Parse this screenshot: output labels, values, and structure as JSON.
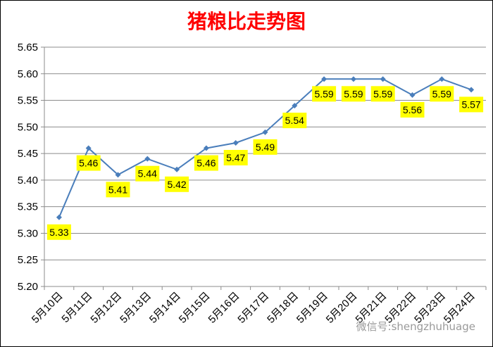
{
  "chart_data": {
    "type": "line",
    "title": "猪粮比走势图",
    "categories": [
      "5月10日",
      "5月11日",
      "5月12日",
      "5月13日",
      "5月14日",
      "5月15日",
      "5月16日",
      "5月17日",
      "5月18日",
      "5月19日",
      "5月20日",
      "5月21日",
      "5月22日",
      "5月23日",
      "5月24日"
    ],
    "series": [
      {
        "values": [
          5.33,
          5.46,
          5.41,
          5.44,
          5.42,
          5.46,
          5.47,
          5.49,
          5.54,
          5.59,
          5.59,
          5.59,
          5.56,
          5.59,
          5.57
        ]
      }
    ],
    "data_labels": [
      "5.33",
      "5.46",
      "5.41",
      "5.44",
      "5.42",
      "5.46",
      "5.47",
      "5.49",
      "5.54",
      "5.59",
      "5.59",
      "5.59",
      "5.56",
      "5.59",
      "5.57"
    ],
    "y_ticks": [
      "5.20",
      "5.25",
      "5.30",
      "5.35",
      "5.40",
      "5.45",
      "5.50",
      "5.55",
      "5.60",
      "5.65"
    ],
    "ylim": [
      5.2,
      5.65
    ],
    "grid": "horizontal",
    "line_color": "#4a7ebb",
    "label_bg": "#ffff00"
  },
  "watermark": "微信号:shengzhuhuage"
}
